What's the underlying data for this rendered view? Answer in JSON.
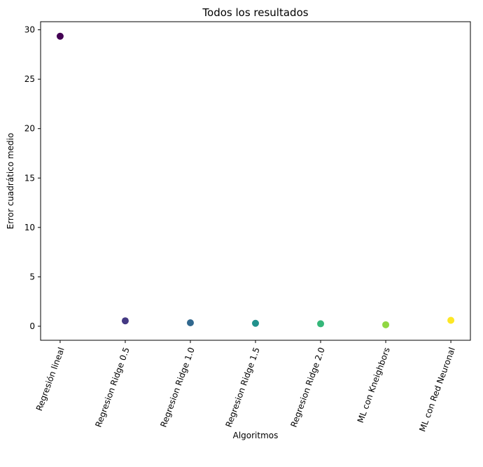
{
  "chart_data": {
    "type": "scatter",
    "title": "Todos los resultados",
    "xlabel": "Algoritmos",
    "ylabel": "Error cuadrático medio",
    "categories": [
      "Regresión lineal",
      "Regresion Ridge 0.5",
      "Regresion Ridge 1.0",
      "Regresion Ridge 1.5",
      "Regresion Ridge 2.0",
      "ML con Kneighbors",
      "ML con Red Neuronal"
    ],
    "values": [
      29.35,
      0.55,
      0.35,
      0.3,
      0.25,
      0.15,
      0.6
    ],
    "colors": [
      "#440154",
      "#443983",
      "#31688e",
      "#21918c",
      "#35b779",
      "#90d743",
      "#fde725"
    ],
    "ylim": [
      -1.42,
      30.82
    ],
    "yticks": [
      0,
      5,
      10,
      15,
      20,
      25,
      30
    ],
    "grid": false,
    "legend": "none"
  }
}
